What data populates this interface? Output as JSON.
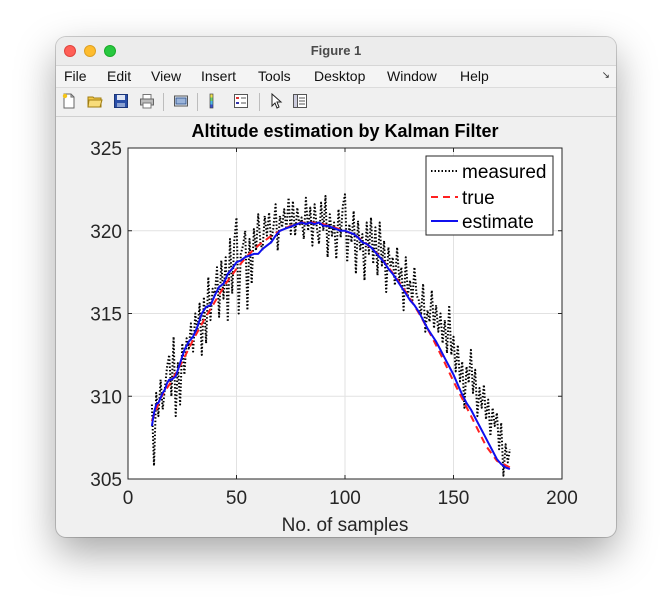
{
  "window": {
    "title": "Figure 1"
  },
  "menu": {
    "items": [
      "File",
      "Edit",
      "View",
      "Insert",
      "Tools",
      "Desktop",
      "Window",
      "Help"
    ]
  },
  "toolbar": {
    "icons": [
      "new-figure-icon",
      "open-file-icon",
      "save-icon",
      "print-icon",
      "link-plot-icon",
      "colorbar-icon",
      "legend-icon",
      "pointer-icon",
      "property-editor-icon"
    ]
  },
  "colors": {
    "measured": "#000000",
    "true": "#ff2020",
    "estimate": "#1010ee"
  },
  "chart_data": {
    "type": "line",
    "title": "Altitude estimation by Kalman Filter",
    "xlabel": "No. of samples",
    "ylabel": "",
    "xlim": [
      0,
      200
    ],
    "ylim": [
      305,
      325
    ],
    "xticks": [
      "0",
      "50",
      "100",
      "150",
      "200"
    ],
    "yticks": [
      "305",
      "310",
      "315",
      "320",
      "325"
    ],
    "grid": true,
    "legend_position": "top-right",
    "series": [
      {
        "name": "measured",
        "style": "dotted",
        "color": "#000000",
        "x": [
          11,
          12,
          13,
          14,
          15,
          16,
          17,
          18,
          19,
          20,
          21,
          22,
          23,
          24,
          25,
          26,
          27,
          28,
          29,
          30,
          31,
          32,
          33,
          34,
          35,
          36,
          37,
          38,
          39,
          40,
          41,
          42,
          43,
          44,
          45,
          46,
          47,
          48,
          49,
          50,
          51,
          52,
          53,
          54,
          55,
          56,
          57,
          58,
          59,
          60,
          61,
          62,
          63,
          64,
          65,
          66,
          67,
          68,
          69,
          70,
          71,
          72,
          73,
          74,
          75,
          76,
          77,
          78,
          79,
          80,
          81,
          82,
          83,
          84,
          85,
          86,
          87,
          88,
          89,
          90,
          91,
          92,
          93,
          94,
          95,
          96,
          97,
          98,
          99,
          100,
          101,
          102,
          103,
          104,
          105,
          106,
          107,
          108,
          109,
          110,
          111,
          112,
          113,
          114,
          115,
          116,
          117,
          118,
          119,
          120,
          121,
          122,
          123,
          124,
          125,
          126,
          127,
          128,
          129,
          130,
          131,
          132,
          133,
          134,
          135,
          136,
          137,
          138,
          139,
          140,
          141,
          142,
          143,
          144,
          145,
          146,
          147,
          148,
          149,
          150,
          151,
          152,
          153,
          154,
          155,
          156,
          157,
          158,
          159,
          160,
          161,
          162,
          163,
          164,
          165,
          166,
          167,
          168,
          169,
          170,
          171,
          172,
          173,
          174,
          175,
          176
        ],
        "y": [
          309.5,
          305.8,
          310.2,
          308.8,
          311.0,
          309.2,
          310.5,
          311.8,
          312.5,
          310.0,
          313.6,
          308.8,
          312.0,
          309.5,
          313.2,
          311.3,
          313.5,
          312.8,
          314.4,
          312.7,
          315.0,
          313.9,
          315.6,
          312.5,
          316.0,
          313.2,
          317.2,
          314.6,
          316.5,
          316.1,
          317.8,
          314.8,
          318.2,
          315.9,
          318.4,
          314.5,
          319.5,
          316.2,
          319.4,
          320.8,
          315.0,
          318.6,
          319.1,
          320.0,
          315.2,
          319.5,
          316.8,
          320.1,
          318.8,
          321.0,
          319.3,
          318.8,
          320.9,
          319.7,
          321.1,
          319.3,
          320.2,
          321.6,
          318.8,
          320.9,
          320.2,
          321.3,
          320.1,
          322.0,
          319.8,
          321.8,
          319.7,
          321.4,
          320.3,
          320.8,
          319.5,
          322.0,
          320.0,
          321.4,
          319.1,
          321.6,
          320.2,
          319.2,
          321.7,
          320.0,
          322.1,
          318.4,
          321.0,
          319.7,
          320.5,
          318.3,
          321.3,
          319.6,
          321.5,
          322.2,
          318.1,
          320.4,
          319.3,
          321.2,
          317.4,
          320.6,
          318.8,
          319.8,
          317.0,
          320.5,
          318.6,
          320.8,
          318.0,
          320.2,
          317.3,
          320.5,
          317.9,
          319.4,
          316.3,
          319.0,
          317.8,
          318.4,
          316.7,
          319.0,
          317.0,
          317.8,
          315.2,
          318.4,
          316.1,
          317.0,
          315.7,
          317.8,
          316.1,
          315.8,
          314.9,
          316.8,
          313.9,
          315.2,
          314.5,
          316.4,
          314.1,
          315.5,
          313.9,
          315.0,
          313.2,
          314.6,
          312.6,
          315.5,
          312.5,
          313.6,
          311.5,
          313.1,
          310.9,
          312.1,
          309.3,
          311.8,
          310.8,
          312.8,
          310.2,
          311.6,
          308.8,
          310.5,
          309.3,
          310.7,
          308.6,
          309.8,
          307.6,
          309.3,
          308.2,
          309.0,
          306.8,
          308.4,
          305.2,
          307.1,
          306.0,
          306.8
        ]
      },
      {
        "name": "true",
        "style": "dashed",
        "color": "#ff2020",
        "x": [
          11,
          15,
          20,
          25,
          30,
          35,
          40,
          45,
          50,
          55,
          60,
          65,
          70,
          75,
          80,
          85,
          90,
          95,
          100,
          105,
          110,
          115,
          120,
          125,
          130,
          135,
          140,
          145,
          150,
          155,
          160,
          165,
          170,
          176
        ],
        "y": [
          308.5,
          309.9,
          310.9,
          312.1,
          313.4,
          314.6,
          315.7,
          316.8,
          317.7,
          318.5,
          319.1,
          319.6,
          320.0,
          320.3,
          320.5,
          320.5,
          320.4,
          320.2,
          320.0,
          319.7,
          319.2,
          318.6,
          317.8,
          316.9,
          315.9,
          314.8,
          313.6,
          312.3,
          310.9,
          309.6,
          308.3,
          307.0,
          306.1,
          305.7
        ]
      },
      {
        "name": "estimate",
        "style": "solid",
        "color": "#1010ee",
        "x": [
          11,
          12,
          13,
          14,
          15,
          16,
          17,
          18,
          19,
          20,
          22,
          24,
          26,
          28,
          30,
          32,
          34,
          36,
          38,
          40,
          42,
          44,
          46,
          48,
          50,
          52,
          54,
          56,
          58,
          60,
          62,
          64,
          66,
          68,
          70,
          72,
          74,
          76,
          78,
          80,
          82,
          84,
          86,
          88,
          90,
          92,
          94,
          96,
          98,
          100,
          102,
          104,
          106,
          108,
          110,
          112,
          114,
          116,
          118,
          120,
          122,
          124,
          126,
          128,
          130,
          132,
          134,
          136,
          138,
          140,
          142,
          144,
          146,
          148,
          150,
          152,
          154,
          156,
          158,
          160,
          162,
          164,
          166,
          168,
          170,
          172,
          174,
          176
        ],
        "y": [
          308.2,
          309.0,
          309.5,
          309.6,
          309.9,
          310.2,
          310.4,
          310.8,
          311.0,
          311.0,
          311.2,
          312.0,
          312.8,
          313.3,
          313.6,
          314.2,
          315.0,
          315.4,
          315.5,
          316.1,
          316.6,
          316.8,
          317.4,
          317.7,
          318.1,
          318.2,
          318.4,
          318.5,
          318.6,
          318.6,
          318.9,
          319.1,
          319.3,
          319.7,
          320.0,
          320.1,
          320.2,
          320.3,
          320.4,
          320.5,
          320.4,
          320.5,
          320.4,
          320.5,
          320.3,
          320.3,
          320.2,
          320.1,
          320.0,
          320.0,
          319.9,
          319.8,
          319.6,
          319.3,
          319.2,
          319.0,
          318.7,
          318.4,
          318.1,
          317.7,
          317.4,
          317.0,
          316.6,
          316.2,
          315.8,
          315.5,
          315.1,
          314.6,
          314.1,
          313.7,
          313.3,
          312.8,
          312.3,
          311.8,
          311.3,
          310.7,
          310.1,
          309.6,
          309.2,
          308.7,
          308.2,
          307.7,
          307.2,
          306.7,
          306.2,
          305.9,
          305.7,
          305.6
        ]
      }
    ]
  }
}
